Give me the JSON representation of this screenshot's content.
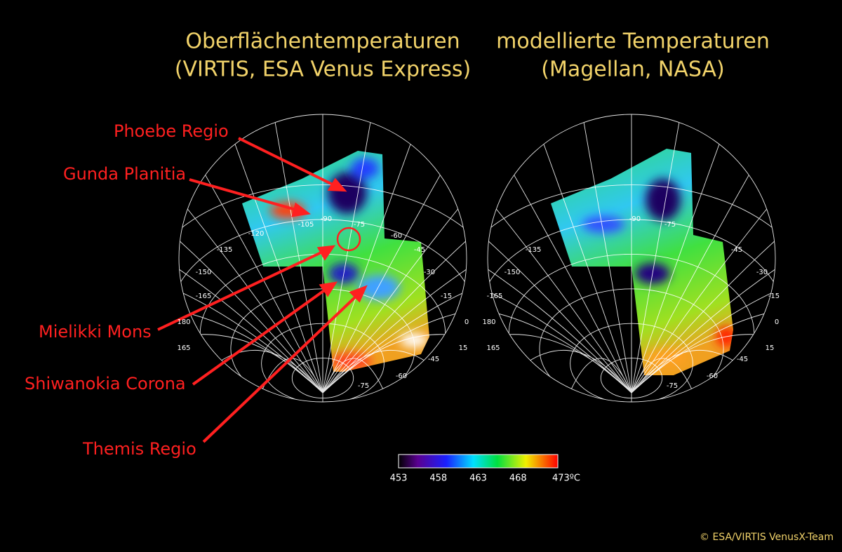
{
  "titles": [
    {
      "line1": "Oberflächentemperaturen",
      "line2": "(VIRTIS, ESA Venus Express)"
    },
    {
      "line1": "modellierte Temperaturen",
      "line2": "(Magellan, NASA)"
    }
  ],
  "annotations": [
    "Phoebe Regio",
    "Gunda Planitia",
    "Mielikki Mons",
    "Shiwanokia Corona",
    "Themis Regio"
  ],
  "globes": [
    {
      "grid_labels": [
        "-90",
        "-105",
        "-120",
        "-135",
        "-150",
        "-165",
        "180",
        "165",
        "-75",
        "-60",
        "-45",
        "-30",
        "-15",
        "0",
        "15",
        "-45",
        "-60",
        "-75"
      ]
    },
    {
      "grid_labels": [
        "-90",
        "-75",
        "-135",
        "-150",
        "-165",
        "180",
        "165",
        "-45",
        "-30",
        "-15",
        "0",
        "15",
        "-45",
        "-60",
        "-75"
      ]
    }
  ],
  "colorbar": {
    "labels": [
      "453",
      "458",
      "463",
      "468",
      "473ºC"
    ]
  },
  "credit": "© ESA/VIRTIS VenusX-Team"
}
